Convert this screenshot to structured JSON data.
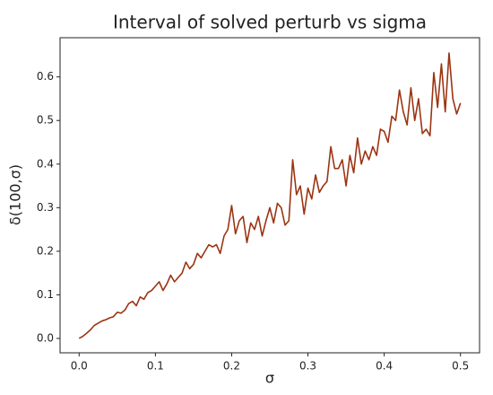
{
  "chart_data": {
    "type": "line",
    "title": "Interval of solved perturb vs sigma",
    "xlabel": "σ",
    "ylabel": "δ(100,σ)",
    "x": [
      0,
      0.005,
      0.01,
      0.015,
      0.02,
      0.025,
      0.03,
      0.035,
      0.04,
      0.045,
      0.05,
      0.055,
      0.06,
      0.065,
      0.07,
      0.075,
      0.08,
      0.085,
      0.09,
      0.095,
      0.1,
      0.105,
      0.11,
      0.115,
      0.12,
      0.125,
      0.13,
      0.135,
      0.14,
      0.145,
      0.15,
      0.155,
      0.16,
      0.165,
      0.17,
      0.175,
      0.18,
      0.185,
      0.19,
      0.195,
      0.2,
      0.205,
      0.21,
      0.215,
      0.22,
      0.225,
      0.23,
      0.235,
      0.24,
      0.245,
      0.25,
      0.255,
      0.26,
      0.265,
      0.27,
      0.275,
      0.28,
      0.285,
      0.29,
      0.295,
      0.3,
      0.305,
      0.31,
      0.315,
      0.32,
      0.325,
      0.33,
      0.335,
      0.34,
      0.345,
      0.35,
      0.355,
      0.36,
      0.365,
      0.37,
      0.375,
      0.38,
      0.385,
      0.39,
      0.395,
      0.4,
      0.405,
      0.41,
      0.415,
      0.42,
      0.425,
      0.43,
      0.435,
      0.44,
      0.445,
      0.45,
      0.455,
      0.46,
      0.465,
      0.47,
      0.475,
      0.48,
      0.485,
      0.49,
      0.495,
      0.5
    ],
    "series": [
      {
        "name": "δ(100,σ)",
        "color": "#9c3412",
        "values": [
          0.0,
          0.005,
          0.012,
          0.02,
          0.03,
          0.035,
          0.04,
          0.043,
          0.047,
          0.05,
          0.06,
          0.058,
          0.065,
          0.08,
          0.085,
          0.075,
          0.095,
          0.09,
          0.105,
          0.11,
          0.12,
          0.13,
          0.11,
          0.125,
          0.145,
          0.13,
          0.14,
          0.15,
          0.175,
          0.16,
          0.17,
          0.195,
          0.185,
          0.2,
          0.215,
          0.21,
          0.215,
          0.195,
          0.235,
          0.25,
          0.305,
          0.24,
          0.27,
          0.28,
          0.22,
          0.265,
          0.25,
          0.28,
          0.235,
          0.27,
          0.3,
          0.265,
          0.31,
          0.3,
          0.26,
          0.27,
          0.41,
          0.33,
          0.35,
          0.285,
          0.345,
          0.32,
          0.375,
          0.335,
          0.35,
          0.36,
          0.44,
          0.39,
          0.39,
          0.41,
          0.35,
          0.42,
          0.38,
          0.46,
          0.4,
          0.43,
          0.41,
          0.44,
          0.42,
          0.48,
          0.475,
          0.45,
          0.51,
          0.5,
          0.57,
          0.52,
          0.49,
          0.575,
          0.5,
          0.55,
          0.47,
          0.48,
          0.465,
          0.61,
          0.53,
          0.63,
          0.52,
          0.655,
          0.55,
          0.515,
          0.54
        ]
      }
    ],
    "xlim": [
      -0.025,
      0.525
    ],
    "ylim": [
      -0.033,
      0.69
    ],
    "xticks": [
      {
        "value": 0,
        "label": "0.0"
      },
      0.1,
      0.2,
      0.3,
      0.4,
      0.5
    ],
    "yticks": [
      {
        "value": 0,
        "label": "0.0"
      },
      0.1,
      0.2,
      0.3,
      0.4,
      0.5,
      0.6
    ],
    "grid": false
  }
}
